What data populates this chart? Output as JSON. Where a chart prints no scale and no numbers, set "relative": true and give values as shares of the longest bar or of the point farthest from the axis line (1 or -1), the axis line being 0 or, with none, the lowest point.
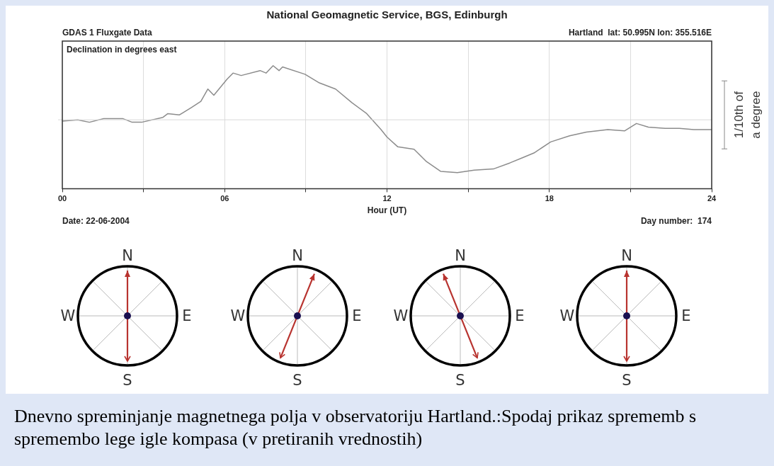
{
  "chart_data": {
    "type": "line",
    "title": "National Geomagnetic Service, BGS, Edinburgh",
    "subtitle": "GDAS 1 Fluxgate Data",
    "xlabel": "Hour (UT)",
    "ylabel": "1/10th of a degree",
    "relative": true,
    "annotations": [
      "Hartland  lat: 50.995N lon: 355.516E",
      "Declination in degrees east",
      "Date: 22-06-2004",
      "Day number:  174",
      "Dnevno spreminjanje magnetnega polja v observatoriju Hartland.:Spodaj prikaz sprememb s spremembo lege igle kompasa (v pretiranih vrednostih)",
      "N",
      "E",
      "S",
      "W"
    ],
    "x": [
      0,
      0.57,
      1.0,
      1.53,
      2.23,
      2.58,
      2.93,
      3.72,
      3.9,
      4.33,
      4.77,
      5.12,
      5.38,
      5.6,
      6.09,
      6.31,
      6.61,
      7.31,
      7.53,
      7.79,
      8.01,
      8.14,
      8.97,
      9.5,
      10.1,
      10.7,
      11.25,
      11.78,
      12.0,
      12.4,
      13.0,
      13.46,
      13.99,
      14.6,
      15.22,
      15.93,
      16.55,
      16.99,
      17.43,
      18.05,
      18.75,
      19.37,
      20.16,
      20.78,
      21.22,
      21.66,
      22.28,
      22.81,
      23.34,
      24
    ],
    "series": [
      {
        "color": "#8c8c8c",
        "values": [
          0.55,
          0.56,
          0.54,
          0.57,
          0.57,
          0.54,
          0.54,
          0.58,
          0.61,
          0.6,
          0.66,
          0.71,
          0.81,
          0.76,
          0.89,
          0.94,
          0.92,
          0.96,
          0.94,
          1,
          0.96,
          0.99,
          0.93,
          0.86,
          0.81,
          0.7,
          0.61,
          0.48,
          0.42,
          0.34,
          0.32,
          0.22,
          0.14,
          0.13,
          0.15,
          0.16,
          0.21,
          0.25,
          0.29,
          0.38,
          0.43,
          0.46,
          0.48,
          0.47,
          0.53,
          0.5,
          0.49,
          0.49,
          0.48,
          0.48
        ]
      }
    ],
    "xlim": [
      0,
      24
    ],
    "xticks": [
      {
        "value": 0,
        "label": "00"
      },
      {
        "value": 3,
        "label": null
      },
      {
        "value": 6,
        "label": "06"
      },
      {
        "value": 9,
        "label": null
      },
      12,
      {
        "value": 15,
        "label": null
      },
      18,
      {
        "value": 21,
        "label": null
      },
      24
    ],
    "ref_lines": [
      {
        "axis": "y",
        "value": 0.56,
        "color": "#d8d8d8"
      }
    ],
    "grid": "x",
    "legend": false,
    "marker": "none",
    "line_style": "solid"
  }
}
